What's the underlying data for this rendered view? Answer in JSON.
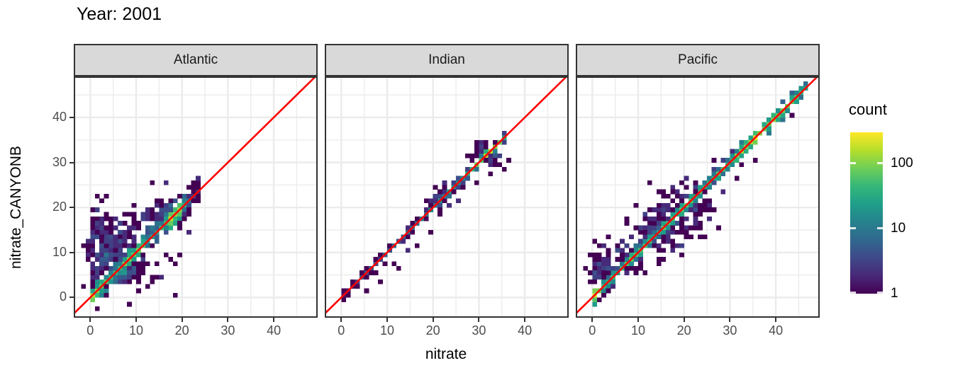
{
  "title": "Year: 2001",
  "colors": {
    "strip_fill": "#d9d9d9",
    "panel_border": "#333333",
    "grid": "#ebebeb",
    "tick_label": "#4d4d4d",
    "identity_line": "#ff0000"
  },
  "chart_data": {
    "type": "heatmap",
    "subtype": "bin2d_2d_histogram",
    "title": "Year: 2001",
    "xlabel": "nitrate",
    "ylabel": "nitrate_CANYONB",
    "facets": [
      "Atlantic",
      "Indian",
      "Pacific"
    ],
    "x_ticks": [
      0,
      10,
      20,
      30,
      40
    ],
    "y_ticks": [
      0,
      10,
      20,
      30,
      40
    ],
    "xlim": [
      -3.3,
      49.3
    ],
    "ylim": [
      -4.2,
      48.8
    ],
    "grid": "major and minor, light gray on white, theme_bw style",
    "bin_width": 1,
    "identity_line": {
      "equation": "y = x",
      "color": "#ff0000"
    },
    "legend": {
      "title": "count",
      "position": "right",
      "scale": "log10",
      "ticks": [
        1,
        10,
        100
      ],
      "max_count": 300,
      "viridis_stops": [
        "#440154",
        "#482878",
        "#3e4989",
        "#31688e",
        "#26828e",
        "#1f9e89",
        "#35b779",
        "#6ece58",
        "#b5de2b",
        "#fde725"
      ]
    },
    "panels": [
      {
        "name": "Atlantic",
        "summary": "Dense cloud hugging 1:1 line from 0 to ~23; bright yellow-green hot spots near (0,0), (8,9) and (17,19); broad purple scatter above the line for nitrate 0-8 reaching CANYONB ~18; sparse purple bins below line; isolated outliers near (16,25), (23,26), (18,0).",
        "generator": {
          "seed": 11,
          "diagonal": {
            "from": 0,
            "to": 23,
            "spread": 1.5,
            "profile": [
              [
                0,
                180
              ],
              [
                1,
                120
              ],
              [
                2,
                80
              ],
              [
                4,
                40
              ],
              [
                6,
                50
              ],
              [
                8,
                90
              ],
              [
                10,
                70
              ],
              [
                12,
                30
              ],
              [
                14,
                25
              ],
              [
                16,
                60
              ],
              [
                17,
                220
              ],
              [
                18,
                160
              ],
              [
                19,
                120
              ],
              [
                20,
                30
              ],
              [
                21,
                8
              ],
              [
                22,
                3
              ],
              [
                23,
                2
              ]
            ]
          },
          "clusters": [
            {
              "cx": 1,
              "cy": 9,
              "sx": 1.2,
              "sy": 4.5,
              "n": 90
            },
            {
              "cx": 4,
              "cy": 11,
              "sx": 2.2,
              "sy": 3,
              "n": 110
            },
            {
              "cx": 7,
              "cy": 7,
              "sx": 3,
              "sy": 2.5,
              "n": 70
            },
            {
              "cx": 12,
              "cy": 15,
              "sx": 2.5,
              "sy": 2,
              "n": 60
            },
            {
              "cx": 17,
              "cy": 18.5,
              "sx": 2.2,
              "sy": 1.5,
              "n": 70
            },
            {
              "cx": 9,
              "cy": 5,
              "sx": 3,
              "sy": 1.5,
              "n": 30
            }
          ],
          "outliers": [
            [
              16,
              25
            ],
            [
              13,
              25
            ],
            [
              23,
              26
            ],
            [
              18,
              0
            ],
            [
              12,
              2
            ],
            [
              15,
              4
            ],
            [
              10,
              1
            ],
            [
              3,
              17
            ],
            [
              0,
              17
            ],
            [
              1,
              16
            ],
            [
              21,
              14
            ],
            [
              19,
              9
            ]
          ]
        }
      },
      {
        "name": "Indian",
        "summary": "Very tight 1:1 band from 0 to ~35, mostly dark purple counts; density rises with nitrate; bright green-yellow segment near (31,31)-(33,32); few purple outliers within ~5 units of line.",
        "generator": {
          "seed": 23,
          "diagonal": {
            "from": 0,
            "to": 35,
            "spread": 0.75,
            "profile": [
              [
                0,
                2
              ],
              [
                2,
                2
              ],
              [
                4,
                3
              ],
              [
                6,
                4
              ],
              [
                8,
                5
              ],
              [
                10,
                5
              ],
              [
                12,
                6
              ],
              [
                14,
                7
              ],
              [
                16,
                8
              ],
              [
                18,
                10
              ],
              [
                20,
                14
              ],
              [
                22,
                16
              ],
              [
                24,
                18
              ],
              [
                26,
                22
              ],
              [
                28,
                40
              ],
              [
                30,
                90
              ],
              [
                31,
                150
              ],
              [
                32,
                160
              ],
              [
                33,
                110
              ],
              [
                34,
                60
              ],
              [
                35,
                25
              ]
            ]
          },
          "clusters": [
            {
              "cx": 31.5,
              "cy": 31,
              "sx": 1.5,
              "sy": 1.5,
              "n": 60
            },
            {
              "cx": 21,
              "cy": 21,
              "sx": 1.5,
              "sy": 1.5,
              "n": 25
            }
          ],
          "outliers": [
            [
              12,
              6
            ],
            [
              14,
              10
            ],
            [
              11,
              7
            ],
            [
              22,
              25
            ],
            [
              19,
              14
            ],
            [
              8,
              3
            ],
            [
              16,
              11
            ],
            [
              25,
              21
            ],
            [
              5,
              1
            ],
            [
              27,
              31
            ],
            [
              29,
              25
            ]
          ]
        }
      },
      {
        "name": "Pacific",
        "summary": "Continuous teal-green 1:1 band over full 0-46 range; yellow-green hot spots near origin and around (35,35); moderately wider purple scatter for nitrate 5-25; above-line purple outliers near (20,26); small above-line arm at nitrate 0-3.",
        "generator": {
          "seed": 37,
          "diagonal": {
            "from": 0,
            "to": 46,
            "spread": 1.1,
            "profile": [
              [
                0,
                220
              ],
              [
                1,
                90
              ],
              [
                3,
                40
              ],
              [
                5,
                35
              ],
              [
                7,
                55
              ],
              [
                9,
                65
              ],
              [
                11,
                45
              ],
              [
                13,
                40
              ],
              [
                15,
                55
              ],
              [
                17,
                50
              ],
              [
                19,
                60
              ],
              [
                21,
                55
              ],
              [
                23,
                50
              ],
              [
                25,
                55
              ],
              [
                27,
                60
              ],
              [
                29,
                70
              ],
              [
                31,
                80
              ],
              [
                33,
                110
              ],
              [
                35,
                200
              ],
              [
                36,
                150
              ],
              [
                37,
                110
              ],
              [
                39,
                90
              ],
              [
                41,
                80
              ],
              [
                43,
                90
              ],
              [
                45,
                70
              ],
              [
                46,
                40
              ]
            ]
          },
          "clusters": [
            {
              "cx": 1.5,
              "cy": 6,
              "sx": 1.2,
              "sy": 2.6,
              "n": 55
            },
            {
              "cx": 15,
              "cy": 15,
              "sx": 3.2,
              "sy": 3.2,
              "n": 130
            },
            {
              "cx": 8,
              "cy": 9,
              "sx": 2,
              "sy": 2,
              "n": 60
            },
            {
              "cx": 21,
              "cy": 20,
              "sx": 2.5,
              "sy": 2.5,
              "n": 70
            }
          ],
          "outliers": [
            [
              20,
              26
            ],
            [
              19,
              25
            ],
            [
              14,
              20
            ],
            [
              9,
              15
            ],
            [
              13,
              19
            ],
            [
              25,
              19
            ],
            [
              22,
              16
            ],
            [
              28,
              23
            ],
            [
              3,
              9
            ],
            [
              2,
              11
            ],
            [
              31,
              26
            ],
            [
              17,
              23
            ],
            [
              -1,
              3
            ],
            [
              0,
              5
            ],
            [
              35,
              30
            ],
            [
              26,
              30
            ]
          ]
        }
      }
    ]
  }
}
